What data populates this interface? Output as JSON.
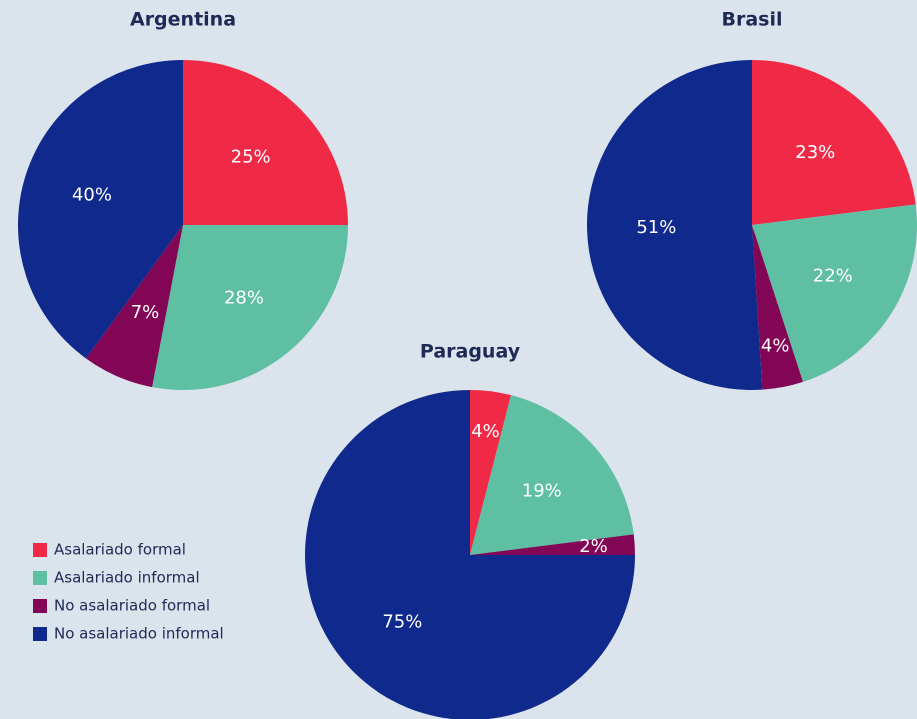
{
  "chart_data": [
    {
      "type": "pie",
      "title": "Argentina",
      "categories": [
        "Asalariado formal",
        "Asalariado informal",
        "No asalariado formal",
        "No asalariado informal"
      ],
      "values": [
        25,
        28,
        7,
        40
      ],
      "value_labels": [
        "25%",
        "28%",
        "7%",
        "40%"
      ],
      "colors": [
        "#f02a46",
        "#5ebfa2",
        "#820655",
        "#10298c"
      ]
    },
    {
      "type": "pie",
      "title": "Brasil",
      "categories": [
        "Asalariado formal",
        "Asalariado informal",
        "No asalariado formal",
        "No asalariado informal"
      ],
      "values": [
        23,
        22,
        4,
        51
      ],
      "value_labels": [
        "23%",
        "22%",
        "4%",
        "51%"
      ],
      "colors": [
        "#f02a46",
        "#5ebfa2",
        "#820655",
        "#10298c"
      ]
    },
    {
      "type": "pie",
      "title": "Paraguay",
      "categories": [
        "Asalariado formal",
        "Asalariado informal",
        "No asalariado formal",
        "No asalariado informal"
      ],
      "values": [
        4,
        19,
        2,
        75
      ],
      "value_labels": [
        "4%",
        "19%",
        "2%",
        "75%"
      ],
      "colors": [
        "#f02a46",
        "#5ebfa2",
        "#820655",
        "#10298c"
      ]
    }
  ]
}
